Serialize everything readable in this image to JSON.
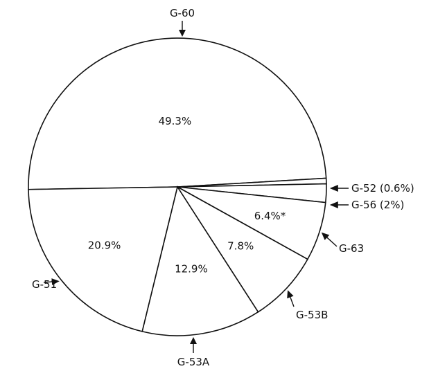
{
  "chart_data": {
    "type": "pie",
    "slices": [
      {
        "name": "G-60",
        "value": 49.3,
        "label": "G-60",
        "value_label": "49.3%"
      },
      {
        "name": "G-52",
        "value": 0.6,
        "label": "G-52 (0.6%)",
        "value_label": ""
      },
      {
        "name": "G-56",
        "value": 2,
        "label": "G-56 (2%)",
        "value_label": ""
      },
      {
        "name": "G-63",
        "value": 6.4,
        "label": "G-63",
        "value_label": "6.4%*"
      },
      {
        "name": "G-53B",
        "value": 7.8,
        "label": "G-53B",
        "value_label": "7.8%"
      },
      {
        "name": "G-53A",
        "value": 12.9,
        "label": "G-53A",
        "value_label": "12.9%"
      },
      {
        "name": "G-51",
        "value": 20.9,
        "label": "G-51",
        "value_label": "20.9%"
      }
    ],
    "title": "",
    "legend": "none",
    "colors": {
      "fill": "#ffffff",
      "stroke": "#111111",
      "text": "#111111"
    }
  }
}
